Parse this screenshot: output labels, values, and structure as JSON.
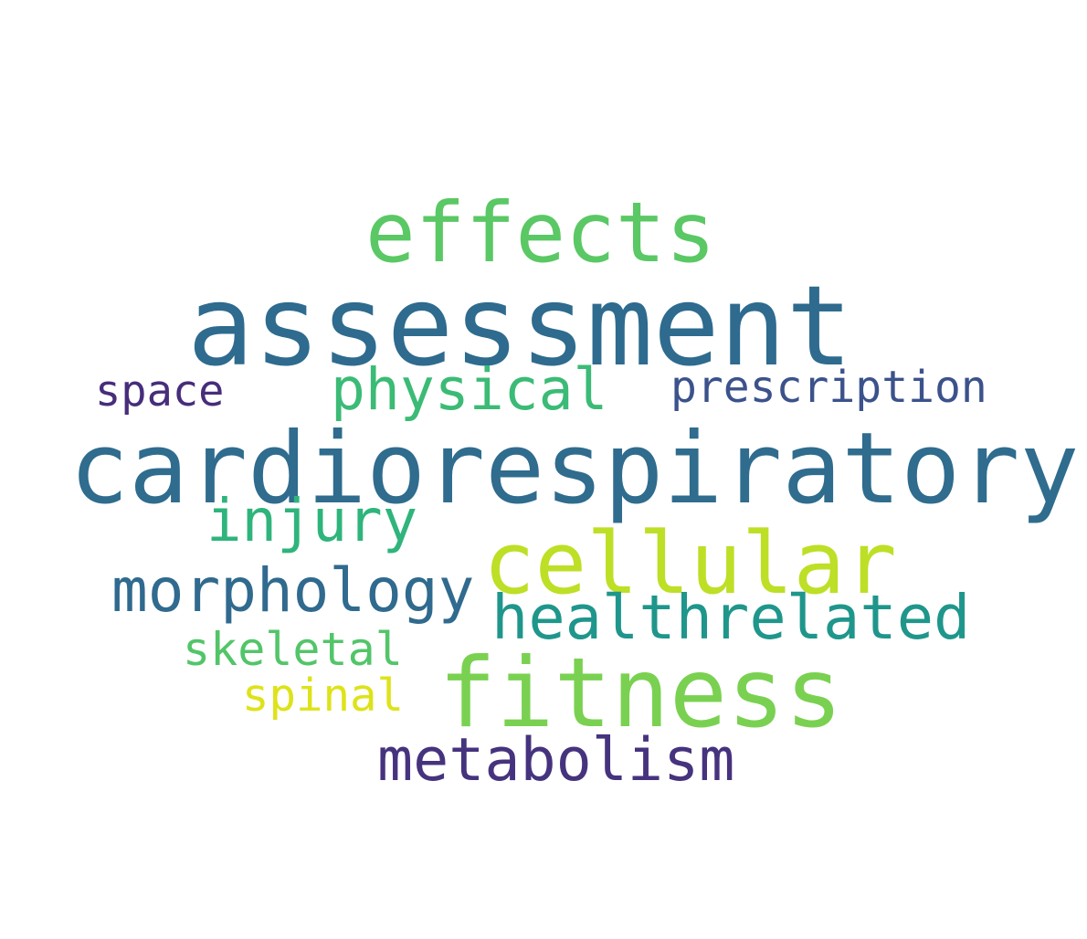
{
  "words": [
    {
      "key": "effects",
      "text": "effects",
      "color": "#5ac864"
    },
    {
      "key": "assessment",
      "text": "assessment",
      "color": "#2e6b8e"
    },
    {
      "key": "space",
      "text": "space",
      "color": "#472d7b"
    },
    {
      "key": "physical",
      "text": "physical",
      "color": "#3bbb75"
    },
    {
      "key": "prescription",
      "text": "prescription",
      "color": "#3b528b"
    },
    {
      "key": "cardiorespiratory",
      "text": "cardiorespiratory",
      "color": "#2f6c8e"
    },
    {
      "key": "injury",
      "text": "injury",
      "color": "#2fb47c"
    },
    {
      "key": "cellular",
      "text": "cellular",
      "color": "#bddf26"
    },
    {
      "key": "morphology",
      "text": "morphology",
      "color": "#306a8e"
    },
    {
      "key": "healthrelated",
      "text": "healthrelated",
      "color": "#1f968b"
    },
    {
      "key": "skeletal",
      "text": "skeletal",
      "color": "#52c569"
    },
    {
      "key": "fitness",
      "text": "fitness",
      "color": "#7ad151"
    },
    {
      "key": "spinal",
      "text": "spinal",
      "color": "#dde318"
    },
    {
      "key": "metabolism",
      "text": "metabolism",
      "color": "#46337e"
    }
  ]
}
